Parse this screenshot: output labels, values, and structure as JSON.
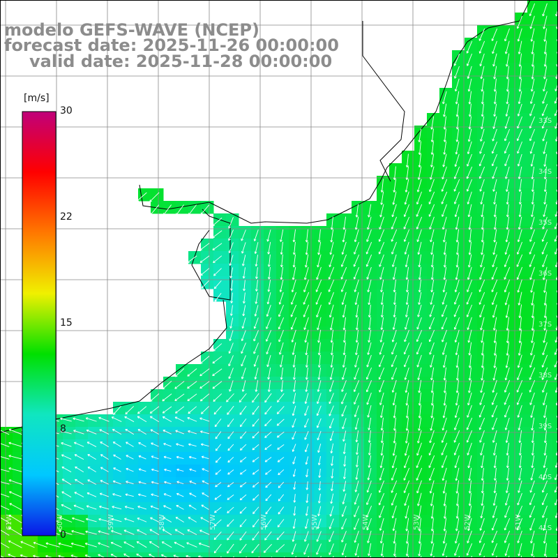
{
  "title": {
    "line1": "modelo GEFS-WAVE (NCEP)",
    "line2": "forecast date: 2025-11-26 00:00:00",
    "line3": "valid date: 2025-11-28 00:00:00"
  },
  "colorbar": {
    "unit": "[m/s]",
    "ticks": [
      "30",
      "22",
      "15",
      "8",
      "0"
    ],
    "min": 0,
    "max": 30,
    "stops": [
      "#0a14e6",
      "#00c8ff",
      "#10e6c0",
      "#00e000",
      "#f0f000",
      "#ff7800",
      "#ff0000",
      "#c0007a"
    ]
  },
  "grid": {
    "lon_labels": [
      "61W",
      "60W",
      "59W",
      "58W",
      "57W",
      "56W",
      "55W",
      "54W",
      "53W",
      "52W",
      "51W"
    ],
    "lat_labels": [
      "33S",
      "34S",
      "35S",
      "36S",
      "37S",
      "38S",
      "39S",
      "40S",
      "41S"
    ]
  },
  "field": {
    "variable": "wind speed",
    "arrow_color": "#ffffff",
    "coast_color": "#000000"
  }
}
